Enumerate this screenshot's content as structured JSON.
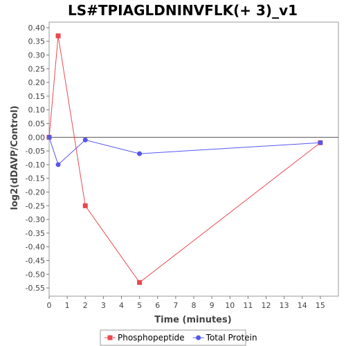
{
  "chart_data": {
    "type": "line",
    "title": "LS#TPIAGLDNINVFLK(+ 3)_v1",
    "xlabel": "Time (minutes)",
    "ylabel": "log2(dDAVP/Control)",
    "xlim": [
      0,
      16
    ],
    "ylim": [
      -0.58,
      0.42
    ],
    "xticks": [
      0,
      1,
      2,
      3,
      4,
      5,
      6,
      7,
      8,
      9,
      10,
      11,
      12,
      13,
      14,
      15
    ],
    "yticks": [
      0.4,
      0.35,
      0.3,
      0.25,
      0.2,
      0.15,
      0.1,
      0.05,
      0.0,
      -0.05,
      -0.1,
      -0.15,
      -0.2,
      -0.25,
      -0.3,
      -0.35,
      -0.4,
      -0.45,
      -0.5,
      -0.55
    ],
    "grid": false,
    "zero_line": true,
    "legend_position": "bottom",
    "series": [
      {
        "name": "Phosphopeptide",
        "color": "#e8484f",
        "marker": "square",
        "x": [
          0,
          0.5,
          2,
          5,
          15
        ],
        "y": [
          0.0,
          0.37,
          -0.25,
          -0.53,
          -0.02
        ]
      },
      {
        "name": "Total Protein",
        "color": "#5555ee",
        "marker": "circle",
        "x": [
          0,
          0.5,
          2,
          5,
          15
        ],
        "y": [
          0.0,
          -0.1,
          -0.01,
          -0.06,
          -0.02
        ]
      }
    ]
  }
}
